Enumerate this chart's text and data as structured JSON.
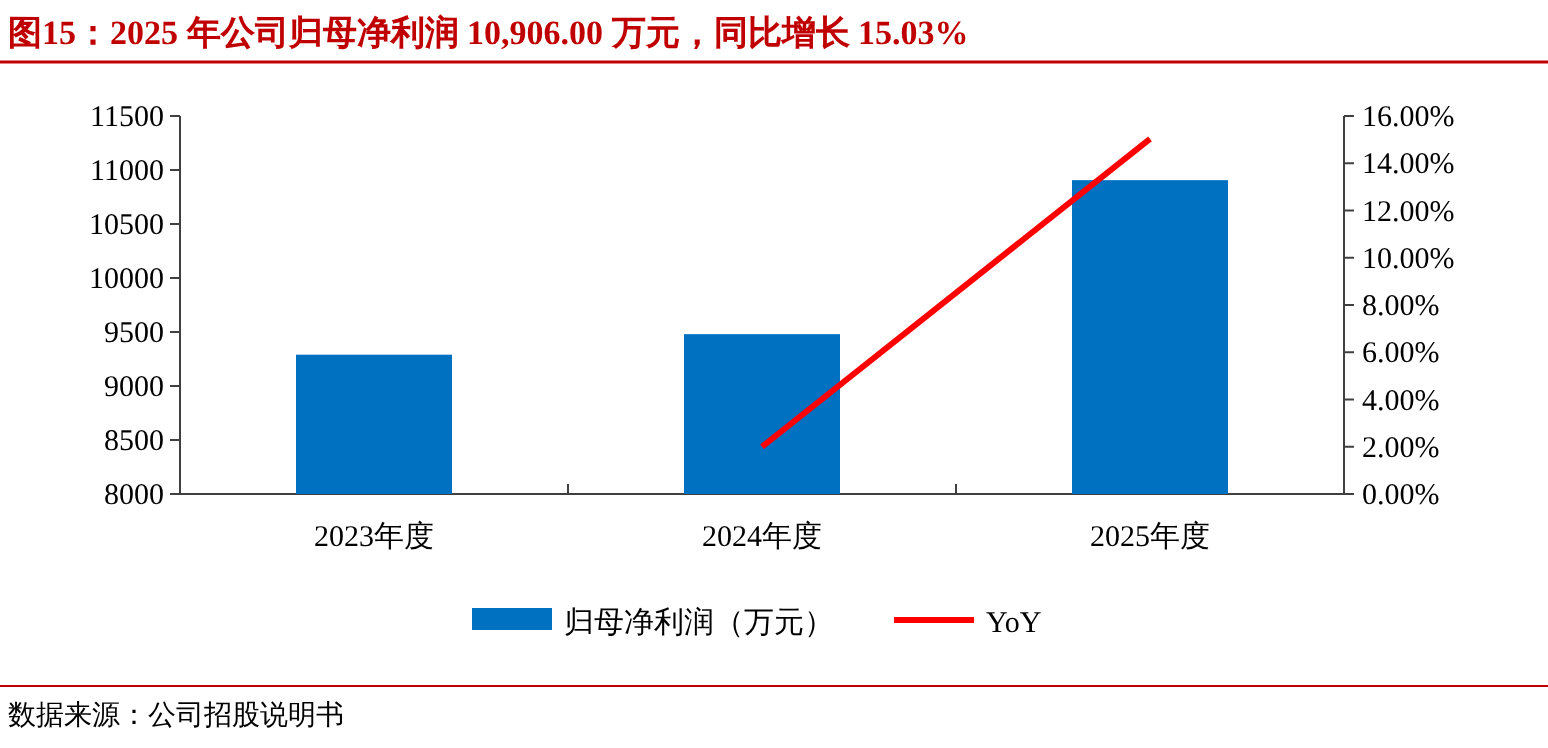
{
  "chart_data": {
    "type": "bar",
    "title": "图15：2025 年公司归母净利润 10,906.00 万元，同比增长 15.03%",
    "categories": [
      "2023年度",
      "2024年度",
      "2025年度"
    ],
    "series": [
      {
        "name": "归母净利润（万元）",
        "color": "#0070c0",
        "values": [
          9290,
          9480,
          10906
        ]
      },
      {
        "name": "YoY",
        "type": "line",
        "axis": "y2",
        "color": "#ff0000",
        "values": [
          null,
          2.0,
          15.03
        ]
      }
    ],
    "ylim": [
      8000,
      11500
    ],
    "yticks": [
      8000,
      8500,
      9000,
      9500,
      10000,
      10500,
      11000,
      11500
    ],
    "y2lim": [
      0,
      16
    ],
    "y2ticks": [
      {
        "value": 0,
        "label": "0.00%"
      },
      {
        "value": 2,
        "label": "2.00%"
      },
      {
        "value": 4,
        "label": "4.00%"
      },
      {
        "value": 6,
        "label": "6.00%"
      },
      {
        "value": 8,
        "label": "8.00%"
      },
      {
        "value": 10,
        "label": "10.00%"
      },
      {
        "value": 12,
        "label": "12.00%"
      },
      {
        "value": 14,
        "label": "14.00%"
      },
      {
        "value": 16,
        "label": "16.00%"
      }
    ],
    "legend": "bottom",
    "annotations": [
      "数据来源：公司招股说明书"
    ]
  }
}
